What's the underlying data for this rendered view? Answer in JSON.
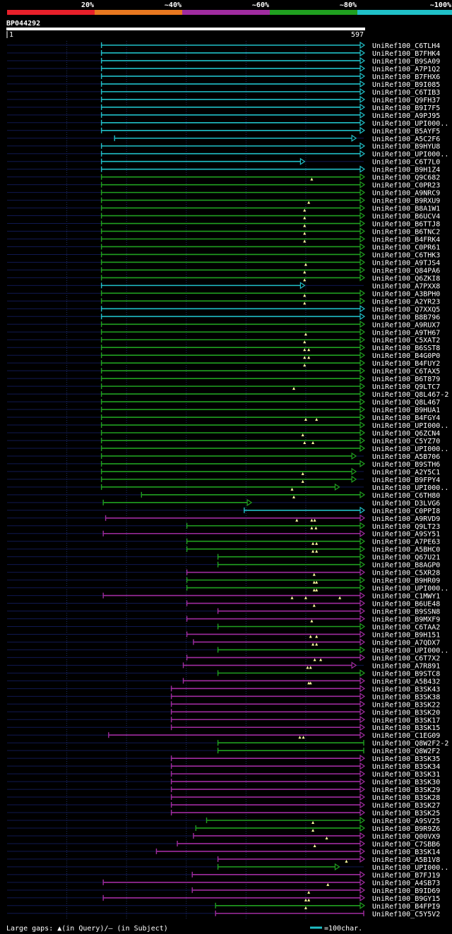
{
  "chart_data": {
    "type": "alignment-overview",
    "query_id": "BP044292",
    "query_start": "1",
    "query_end": "597",
    "query_length": 597,
    "identity_scale": [
      {
        "label": "20%",
        "color": "#e8202a"
      },
      {
        "label": "~40%",
        "color": "#e87820"
      },
      {
        "label": "~60%",
        "color": "#a02ca0"
      },
      {
        "label": "~80%",
        "color": "#20a020"
      },
      {
        "label": "~100%",
        "color": "#20c0c8"
      }
    ],
    "legend_text": "Large gaps: ▲(in Query)/– (in Subject)",
    "scale_text": "=100char.",
    "hits": [
      {
        "id": "UniRef100_C6TLH4",
        "color": "#20c0c8",
        "start": 158,
        "end": 597,
        "arrow": true
      },
      {
        "id": "UniRef100_B7FHK4",
        "color": "#20c0c8",
        "start": 158,
        "end": 597,
        "arrow": true
      },
      {
        "id": "UniRef100_B9SA09",
        "color": "#20c0c8",
        "start": 158,
        "end": 597,
        "arrow": true
      },
      {
        "id": "UniRef100_A7P1Q2",
        "color": "#20c0c8",
        "start": 158,
        "end": 597,
        "arrow": true
      },
      {
        "id": "UniRef100_B7FHX6",
        "color": "#20c0c8",
        "start": 158,
        "end": 597,
        "arrow": true
      },
      {
        "id": "UniRef100_B9I085",
        "color": "#20c0c8",
        "start": 158,
        "end": 597,
        "arrow": true
      },
      {
        "id": "UniRef100_C6TIB3",
        "color": "#20c0c8",
        "start": 158,
        "end": 597,
        "arrow": true
      },
      {
        "id": "UniRef100_Q9FH37",
        "color": "#20c0c8",
        "start": 158,
        "end": 597,
        "arrow": true
      },
      {
        "id": "UniRef100_B9I7F5",
        "color": "#20c0c8",
        "start": 158,
        "end": 597,
        "arrow": true
      },
      {
        "id": "UniRef100_A9PJ95",
        "color": "#20c0c8",
        "start": 158,
        "end": 597,
        "arrow": true
      },
      {
        "id": "UniRef100_UPI000..",
        "color": "#20c0c8",
        "start": 158,
        "end": 597,
        "arrow": true
      },
      {
        "id": "UniRef100_B5AYF5",
        "color": "#20c0c8",
        "start": 158,
        "end": 597,
        "arrow": true
      },
      {
        "id": "UniRef100_A5C2F6",
        "color": "#20c0c8",
        "start": 180,
        "end": 583,
        "arrow": true
      },
      {
        "id": "UniRef100_B9HYU8",
        "color": "#20c0c8",
        "start": 158,
        "end": 597,
        "arrow": true
      },
      {
        "id": "UniRef100_UPI000..",
        "color": "#20c0c8",
        "start": 158,
        "end": 597,
        "arrow": true
      },
      {
        "id": "UniRef100_C6T7L0",
        "color": "#20c0c8",
        "start": 158,
        "end": 497,
        "arrow": true
      },
      {
        "id": "UniRef100_B9H1Z4",
        "color": "#20c0c8",
        "start": 158,
        "end": 597,
        "arrow": true
      },
      {
        "id": "UniRef100_Q9C682",
        "color": "#20a020",
        "start": 158,
        "end": 597,
        "arrow": true,
        "qgaps": [
          510
        ]
      },
      {
        "id": "UniRef100_C0PR23",
        "color": "#20a020",
        "start": 158,
        "end": 597,
        "arrow": true
      },
      {
        "id": "UniRef100_A9NRC9",
        "color": "#20a020",
        "start": 158,
        "end": 597,
        "arrow": true
      },
      {
        "id": "UniRef100_B9RXU9",
        "color": "#20a020",
        "start": 158,
        "end": 597,
        "arrow": true,
        "qgaps": [
          505
        ]
      },
      {
        "id": "UniRef100_B8A1W1",
        "color": "#20a020",
        "start": 158,
        "end": 597,
        "arrow": true,
        "qgaps": [
          498
        ]
      },
      {
        "id": "UniRef100_B6UCV4",
        "color": "#20a020",
        "start": 158,
        "end": 597,
        "arrow": true,
        "qgaps": [
          498
        ]
      },
      {
        "id": "UniRef100_B6TTJ8",
        "color": "#20a020",
        "start": 158,
        "end": 597,
        "arrow": true,
        "qgaps": [
          498
        ]
      },
      {
        "id": "UniRef100_B6TNC2",
        "color": "#20a020",
        "start": 158,
        "end": 597,
        "arrow": true,
        "qgaps": [
          498
        ]
      },
      {
        "id": "UniRef100_B4FRK4",
        "color": "#20a020",
        "start": 158,
        "end": 597,
        "arrow": true,
        "qgaps": [
          498
        ]
      },
      {
        "id": "UniRef100_C0PR61",
        "color": "#20a020",
        "start": 158,
        "end": 597,
        "arrow": true
      },
      {
        "id": "UniRef100_C6THK3",
        "color": "#20a020",
        "start": 158,
        "end": 597,
        "arrow": true
      },
      {
        "id": "UniRef100_A9TJS4",
        "color": "#20a020",
        "start": 158,
        "end": 597,
        "arrow": true,
        "qgaps": [
          500
        ]
      },
      {
        "id": "UniRef100_Q84PA6",
        "color": "#20a020",
        "start": 158,
        "end": 597,
        "arrow": true,
        "qgaps": [
          498
        ]
      },
      {
        "id": "UniRef100_Q6ZKI8",
        "color": "#20a020",
        "start": 158,
        "end": 597,
        "arrow": true,
        "qgaps": [
          498
        ]
      },
      {
        "id": "UniRef100_A7PXX8",
        "color": "#20c0c8",
        "start": 158,
        "end": 497,
        "arrow": true
      },
      {
        "id": "UniRef100_A3BPH0",
        "color": "#20a020",
        "start": 158,
        "end": 597,
        "arrow": true,
        "qgaps": [
          498
        ]
      },
      {
        "id": "UniRef100_A2YR23",
        "color": "#20a020",
        "start": 158,
        "end": 597,
        "arrow": true,
        "qgaps": [
          498
        ]
      },
      {
        "id": "UniRef100_Q7XXQ5",
        "color": "#20c0c8",
        "start": 158,
        "end": 597,
        "arrow": true
      },
      {
        "id": "UniRef100_B8B796",
        "color": "#20c0c8",
        "start": 158,
        "end": 597,
        "arrow": true
      },
      {
        "id": "UniRef100_A9RUX7",
        "color": "#20a020",
        "start": 158,
        "end": 597,
        "arrow": true
      },
      {
        "id": "UniRef100_A9TH67",
        "color": "#20a020",
        "start": 158,
        "end": 597,
        "arrow": true,
        "qgaps": [
          500
        ]
      },
      {
        "id": "UniRef100_C5XAT2",
        "color": "#20a020",
        "start": 158,
        "end": 597,
        "arrow": true,
        "qgaps": [
          498
        ]
      },
      {
        "id": "UniRef100_B6SST8",
        "color": "#20a020",
        "start": 158,
        "end": 597,
        "arrow": true,
        "qgaps": [
          498,
          505
        ]
      },
      {
        "id": "UniRef100_B4G0P0",
        "color": "#20a020",
        "start": 158,
        "end": 597,
        "arrow": true,
        "qgaps": [
          498,
          505
        ]
      },
      {
        "id": "UniRef100_B4FUY2",
        "color": "#20a020",
        "start": 158,
        "end": 597,
        "arrow": true,
        "qgaps": [
          498
        ]
      },
      {
        "id": "UniRef100_C6TAX5",
        "color": "#20a020",
        "start": 158,
        "end": 597,
        "arrow": true
      },
      {
        "id": "UniRef100_B6T879",
        "color": "#20a020",
        "start": 158,
        "end": 597,
        "arrow": true
      },
      {
        "id": "UniRef100_Q9LTC7",
        "color": "#20a020",
        "start": 158,
        "end": 597,
        "arrow": true,
        "qgaps": [
          480
        ]
      },
      {
        "id": "UniRef100_Q8L467-2",
        "color": "#20a020",
        "start": 158,
        "end": 597,
        "arrow": true
      },
      {
        "id": "UniRef100_Q8L467",
        "color": "#20a020",
        "start": 158,
        "end": 597,
        "arrow": true
      },
      {
        "id": "UniRef100_B9HUA1",
        "color": "#20a020",
        "start": 158,
        "end": 597,
        "arrow": true
      },
      {
        "id": "UniRef100_B4FGY4",
        "color": "#20a020",
        "start": 158,
        "end": 597,
        "arrow": true,
        "qgaps": [
          500,
          518
        ]
      },
      {
        "id": "UniRef100_UPI000..",
        "color": "#20a020",
        "start": 158,
        "end": 597,
        "arrow": true
      },
      {
        "id": "UniRef100_Q6ZCN4",
        "color": "#20a020",
        "start": 158,
        "end": 597,
        "arrow": true,
        "qgaps": [
          495
        ]
      },
      {
        "id": "UniRef100_C5YZ70",
        "color": "#20a020",
        "start": 158,
        "end": 597,
        "arrow": true,
        "qgaps": [
          498,
          512
        ]
      },
      {
        "id": "UniRef100_UPI000..",
        "color": "#20a020",
        "start": 158,
        "end": 597,
        "arrow": true
      },
      {
        "id": "UniRef100_A5B706",
        "color": "#20a020",
        "start": 158,
        "end": 583,
        "arrow": true
      },
      {
        "id": "UniRef100_B9STH6",
        "color": "#20a020",
        "start": 158,
        "end": 597,
        "arrow": true
      },
      {
        "id": "UniRef100_A2Y5C1",
        "color": "#20a020",
        "start": 158,
        "end": 583,
        "arrow": true,
        "qgaps": [
          495
        ]
      },
      {
        "id": "UniRef100_B9FPY4",
        "color": "#20a020",
        "start": 158,
        "end": 583,
        "arrow": true,
        "qgaps": [
          495
        ]
      },
      {
        "id": "UniRef100_UPI000..",
        "color": "#20a020",
        "start": 158,
        "end": 555,
        "arrow": true,
        "qgaps": [
          477
        ]
      },
      {
        "id": "UniRef100_C6TH80",
        "color": "#20a020",
        "start": 225,
        "end": 597,
        "arrow": true,
        "qgaps": [
          480
        ]
      },
      {
        "id": "UniRef100_D3LVG6",
        "color": "#20a020",
        "start": 161,
        "end": 408,
        "arrow": true
      },
      {
        "id": "UniRef100_C0PPI8",
        "color": "#20c0c8",
        "start": 397,
        "end": 597,
        "arrow": true
      },
      {
        "id": "UniRef100_A9RVD9",
        "color": "#a02ca0",
        "start": 165,
        "end": 597,
        "arrow": true,
        "qgaps": [
          485,
          510,
          515
        ]
      },
      {
        "id": "UniRef100_Q9LT23",
        "color": "#20a020",
        "start": 301,
        "end": 597,
        "arrow": true,
        "qgaps": [
          510,
          517
        ]
      },
      {
        "id": "UniRef100_A9SY51",
        "color": "#a02ca0",
        "start": 161,
        "end": 597,
        "arrow": true
      },
      {
        "id": "UniRef100_A7PE63",
        "color": "#20a020",
        "start": 301,
        "end": 597,
        "arrow": true,
        "qgaps": [
          512,
          518
        ]
      },
      {
        "id": "UniRef100_A5BHC0",
        "color": "#20a020",
        "start": 301,
        "end": 597,
        "arrow": true,
        "qgaps": [
          512,
          518
        ]
      },
      {
        "id": "UniRef100_Q67U21",
        "color": "#20a020",
        "start": 353,
        "end": 597,
        "arrow": true
      },
      {
        "id": "UniRef100_B8AGP0",
        "color": "#20a020",
        "start": 353,
        "end": 597,
        "arrow": true
      },
      {
        "id": "UniRef100_C5XR28",
        "color": "#a02ca0",
        "start": 301,
        "end": 597,
        "arrow": true,
        "qgaps": [
          514
        ]
      },
      {
        "id": "UniRef100_B9HR09",
        "color": "#20a020",
        "start": 301,
        "end": 597,
        "arrow": true,
        "qgaps": [
          514,
          518
        ]
      },
      {
        "id": "UniRef100_UPI000..",
        "color": "#20a020",
        "start": 301,
        "end": 597,
        "arrow": true,
        "qgaps": [
          514,
          518
        ]
      },
      {
        "id": "UniRef100_C1MWY1",
        "color": "#a02ca0",
        "start": 161,
        "end": 597,
        "arrow": true,
        "qgaps": [
          477,
          500,
          557
        ]
      },
      {
        "id": "UniRef100_B6UE48",
        "color": "#a02ca0",
        "start": 301,
        "end": 597,
        "arrow": true,
        "qgaps": [
          514
        ]
      },
      {
        "id": "UniRef100_B9SSN8",
        "color": "#a02ca0",
        "start": 353,
        "end": 597,
        "arrow": true
      },
      {
        "id": "UniRef100_B9MXF9",
        "color": "#a02ca0",
        "start": 301,
        "end": 597,
        "arrow": true,
        "qgaps": [
          510
        ]
      },
      {
        "id": "UniRef100_C6TAA2",
        "color": "#20a020",
        "start": 353,
        "end": 597,
        "arrow": true
      },
      {
        "id": "UniRef100_B9H151",
        "color": "#a02ca0",
        "start": 301,
        "end": 597,
        "arrow": true,
        "qgaps": [
          508,
          518
        ]
      },
      {
        "id": "UniRef100_A7QDX7",
        "color": "#a02ca0",
        "start": 312,
        "end": 597,
        "arrow": true,
        "qgaps": [
          512,
          518
        ]
      },
      {
        "id": "UniRef100_UPI000..",
        "color": "#20a020",
        "start": 353,
        "end": 597,
        "arrow": true
      },
      {
        "id": "UniRef100_C6T7X2",
        "color": "#a02ca0",
        "start": 301,
        "end": 597,
        "arrow": true,
        "qgaps": [
          515,
          525
        ]
      },
      {
        "id": "UniRef100_A7R891",
        "color": "#a02ca0",
        "start": 295,
        "end": 583,
        "arrow": true,
        "qgaps": [
          503,
          508
        ]
      },
      {
        "id": "UniRef100_B9STC8",
        "color": "#20a020",
        "start": 353,
        "end": 597,
        "arrow": true
      },
      {
        "id": "UniRef100_A5B432",
        "color": "#a02ca0",
        "start": 295,
        "end": 597,
        "arrow": true,
        "qgaps": [
          505,
          508
        ]
      },
      {
        "id": "UniRef100_B3SK43",
        "color": "#a02ca0",
        "start": 275,
        "end": 597,
        "arrow": true
      },
      {
        "id": "UniRef100_B3SK38",
        "color": "#a02ca0",
        "start": 275,
        "end": 597,
        "arrow": true
      },
      {
        "id": "UniRef100_B3SK22",
        "color": "#a02ca0",
        "start": 275,
        "end": 597,
        "arrow": true
      },
      {
        "id": "UniRef100_B3SK20",
        "color": "#a02ca0",
        "start": 275,
        "end": 597,
        "arrow": true
      },
      {
        "id": "UniRef100_B3SK17",
        "color": "#a02ca0",
        "start": 275,
        "end": 597,
        "arrow": true
      },
      {
        "id": "UniRef100_B3SK15",
        "color": "#a02ca0",
        "start": 275,
        "end": 597,
        "arrow": true
      },
      {
        "id": "UniRef100_C1EG09",
        "color": "#a02ca0",
        "start": 170,
        "end": 597,
        "arrow": true,
        "qgaps": [
          490,
          496
        ]
      },
      {
        "id": "UniRef100_Q8W2F2-2",
        "color": "#20a020",
        "start": 353,
        "end": 597,
        "arrow": false
      },
      {
        "id": "UniRef100_Q8W2F2",
        "color": "#20a020",
        "start": 353,
        "end": 597,
        "arrow": false
      },
      {
        "id": "UniRef100_B3SK35",
        "color": "#a02ca0",
        "start": 275,
        "end": 597,
        "arrow": true
      },
      {
        "id": "UniRef100_B3SK34",
        "color": "#a02ca0",
        "start": 275,
        "end": 597,
        "arrow": true
      },
      {
        "id": "UniRef100_B3SK31",
        "color": "#a02ca0",
        "start": 275,
        "end": 597,
        "arrow": true
      },
      {
        "id": "UniRef100_B3SK30",
        "color": "#a02ca0",
        "start": 275,
        "end": 597,
        "arrow": true
      },
      {
        "id": "UniRef100_B3SK29",
        "color": "#a02ca0",
        "start": 275,
        "end": 597,
        "arrow": true
      },
      {
        "id": "UniRef100_B3SK28",
        "color": "#a02ca0",
        "start": 275,
        "end": 597,
        "arrow": true
      },
      {
        "id": "UniRef100_B3SK27",
        "color": "#a02ca0",
        "start": 275,
        "end": 597,
        "arrow": true
      },
      {
        "id": "UniRef100_B3SK25",
        "color": "#a02ca0",
        "start": 275,
        "end": 597,
        "arrow": true
      },
      {
        "id": "UniRef100_A9SV25",
        "color": "#20a020",
        "start": 334,
        "end": 597,
        "arrow": true,
        "qgaps": [
          512
        ]
      },
      {
        "id": "UniRef100_B9R9Z6",
        "color": "#20a020",
        "start": 316,
        "end": 597,
        "arrow": true,
        "qgaps": [
          512
        ]
      },
      {
        "id": "UniRef100_Q00VX9",
        "color": "#a02ca0",
        "start": 312,
        "end": 597,
        "arrow": true,
        "qgaps": [
          535
        ]
      },
      {
        "id": "UniRef100_C7SBB6",
        "color": "#a02ca0",
        "start": 285,
        "end": 597,
        "arrow": true,
        "qgaps": [
          515
        ]
      },
      {
        "id": "UniRef100_B3SK14",
        "color": "#a02ca0",
        "start": 250,
        "end": 597,
        "arrow": true
      },
      {
        "id": "UniRef100_A5B1V8",
        "color": "#a02ca0",
        "start": 353,
        "end": 597,
        "arrow": true,
        "qgaps": [
          568
        ]
      },
      {
        "id": "UniRef100_UPI000..",
        "color": "#20a020",
        "start": 353,
        "end": 555,
        "arrow": true
      },
      {
        "id": "UniRef100_B7FJ19",
        "color": "#a02ca0",
        "start": 310,
        "end": 597,
        "arrow": true
      },
      {
        "id": "UniRef100_A4SB73",
        "color": "#a02ca0",
        "start": 161,
        "end": 597,
        "arrow": true,
        "qgaps": [
          537
        ]
      },
      {
        "id": "UniRef100_B9ID69",
        "color": "#a02ca0",
        "start": 310,
        "end": 597,
        "arrow": true,
        "qgaps": [
          505
        ]
      },
      {
        "id": "UniRef100_B9GY15",
        "color": "#a02ca0",
        "start": 161,
        "end": 597,
        "arrow": true,
        "qgaps": [
          500,
          505
        ]
      },
      {
        "id": "UniRef100_B4FPI9",
        "color": "#20a020",
        "start": 349,
        "end": 597,
        "arrow": true,
        "qgaps": [
          500
        ]
      },
      {
        "id": "UniRef100_C5Y5V2",
        "color": "#a02ca0",
        "start": 349,
        "end": 597,
        "arrow": false
      }
    ]
  }
}
